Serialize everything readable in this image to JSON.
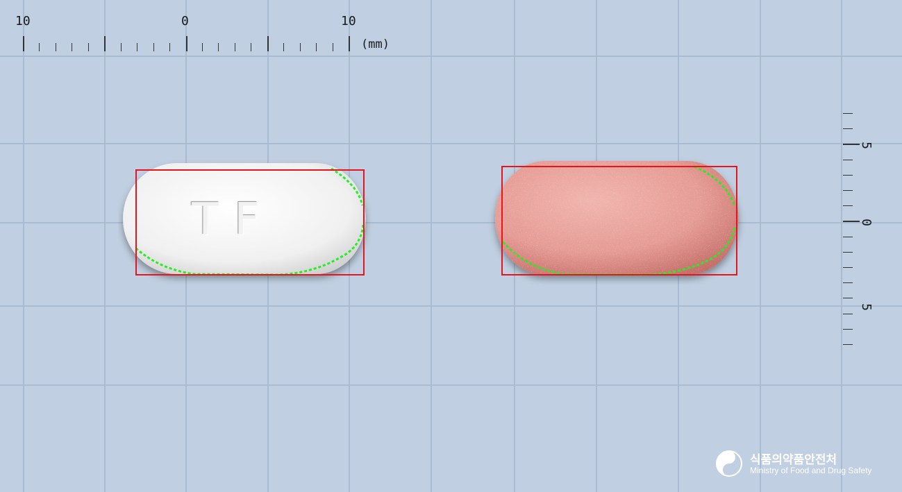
{
  "ruler_top": {
    "labels": [
      "10",
      "0",
      "10"
    ],
    "unit": "(mm)"
  },
  "ruler_right": {
    "labels": [
      "5",
      "0",
      "5"
    ]
  },
  "pills": [
    {
      "name": "white-tablet",
      "color": "#f3f3f3",
      "imprint": "TF"
    },
    {
      "name": "pink-tablet",
      "color": "#e8a39e",
      "imprint": ""
    }
  ],
  "colors": {
    "background": "#c0cfe1",
    "grid": "#a9bbd0",
    "bounding_box": "#e8141b",
    "contour": "#22ee22"
  },
  "logo": {
    "korean": "식품의약품안전처",
    "english": "Ministry of Food and Drug Safety"
  }
}
